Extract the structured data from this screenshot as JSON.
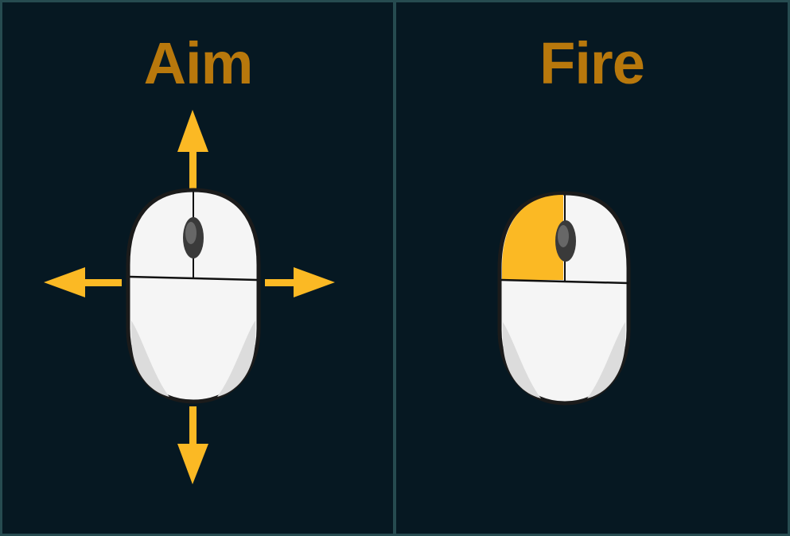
{
  "panels": [
    {
      "title": "Aim",
      "control": "mouse-move",
      "directions": [
        "up",
        "down",
        "left",
        "right"
      ]
    },
    {
      "title": "Fire",
      "control": "left-mouse-button"
    }
  ],
  "colors": {
    "background": "#061822",
    "border": "#264b50",
    "title": "#b8780c",
    "accent": "#fbb924",
    "mouse_body": "#f4f4f4",
    "mouse_outline": "#1a1a1a"
  },
  "icons": {
    "aim_mouse": "mouse-icon",
    "fire_mouse": "mouse-left-click-icon",
    "arrows": "arrow-icon"
  }
}
